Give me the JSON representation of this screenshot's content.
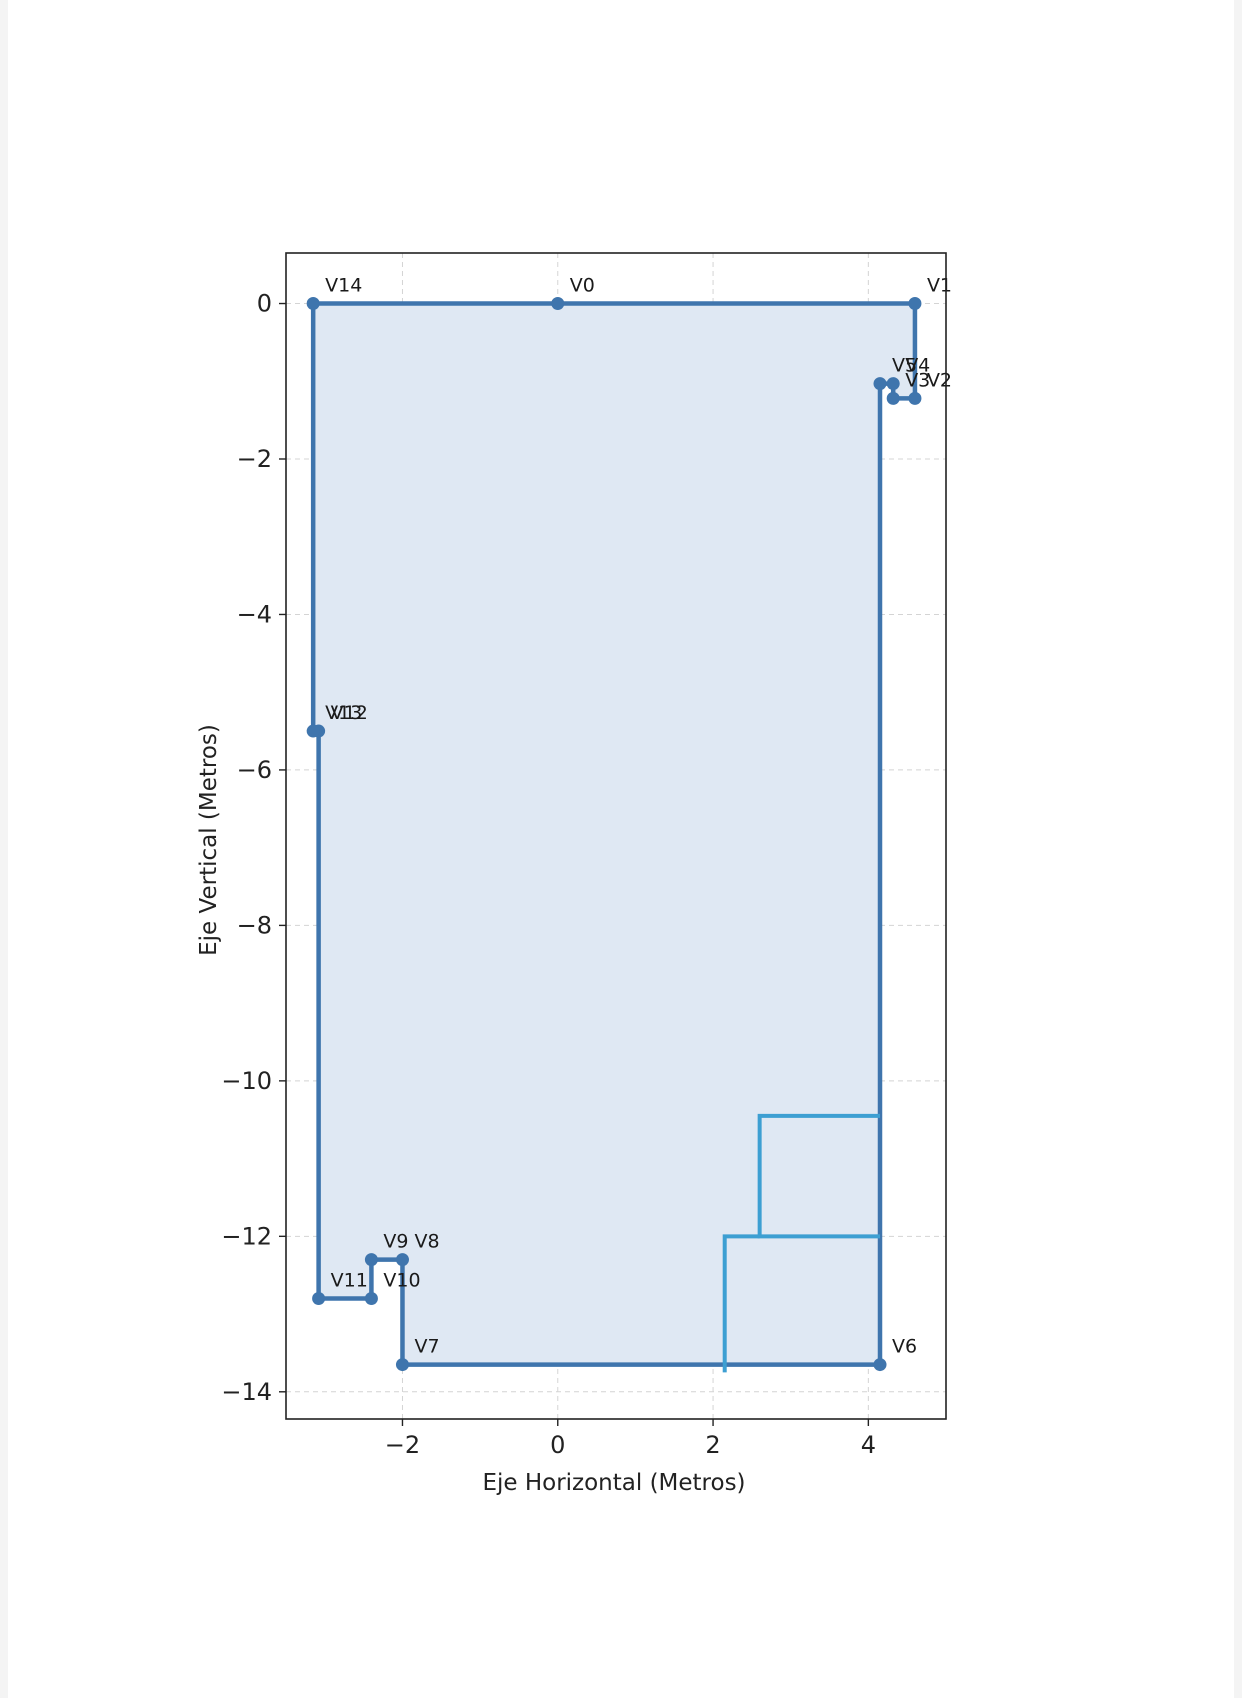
{
  "chart_data": {
    "type": "line",
    "title": "",
    "xlabel": "Eje Horizontal (Metros)",
    "ylabel": "Eje Vertical (Metros)",
    "xlim": [
      -3.5,
      5.0
    ],
    "ylim": [
      -14.35,
      0.65
    ],
    "xticks": [
      -2,
      0,
      2,
      4
    ],
    "yticks": [
      0,
      -2,
      -4,
      -6,
      -8,
      -10,
      -12,
      -14
    ],
    "xtick_labels": [
      "−2",
      "0",
      "2",
      "4"
    ],
    "ytick_labels": [
      "0",
      "−2",
      "−4",
      "−6",
      "−8",
      "−10",
      "−12",
      "−14"
    ],
    "grid": true,
    "colors": {
      "outline": "#3f75ad",
      "fill": "#dfe8f3",
      "overlay": "#3d9fd2",
      "grid": "#d4d4d4"
    },
    "series": [
      {
        "name": "",
        "closed": true,
        "points": [
          {
            "label": "V0",
            "x": 0.0,
            "y": 0.0
          },
          {
            "label": "V1",
            "x": 4.6,
            "y": 0.0
          },
          {
            "label": "V2",
            "x": 4.6,
            "y": -1.22
          },
          {
            "label": "V3",
            "x": 4.32,
            "y": -1.22
          },
          {
            "label": "V4",
            "x": 4.32,
            "y": -1.03
          },
          {
            "label": "V5",
            "x": 4.15,
            "y": -1.03
          },
          {
            "label": "V6",
            "x": 4.15,
            "y": -13.65
          },
          {
            "label": "V7",
            "x": -2.0,
            "y": -13.65
          },
          {
            "label": "V8",
            "x": -2.0,
            "y": -12.3
          },
          {
            "label": "V9",
            "x": -2.4,
            "y": -12.3
          },
          {
            "label": "V10",
            "x": -2.4,
            "y": -12.8
          },
          {
            "label": "V11",
            "x": -3.08,
            "y": -12.8
          },
          {
            "label": "V12",
            "x": -3.08,
            "y": -5.5
          },
          {
            "label": "V13",
            "x": -3.15,
            "y": -5.5
          },
          {
            "label": "V14",
            "x": -3.15,
            "y": 0.0
          }
        ]
      }
    ],
    "overlay_lines": [
      [
        [
          4.15,
          -10.45
        ],
        [
          2.6,
          -10.45
        ],
        [
          2.6,
          -12.0
        ],
        [
          4.15,
          -12.0
        ]
      ],
      [
        [
          2.6,
          -12.0
        ],
        [
          2.15,
          -12.0
        ],
        [
          2.15,
          -13.75
        ]
      ]
    ]
  }
}
